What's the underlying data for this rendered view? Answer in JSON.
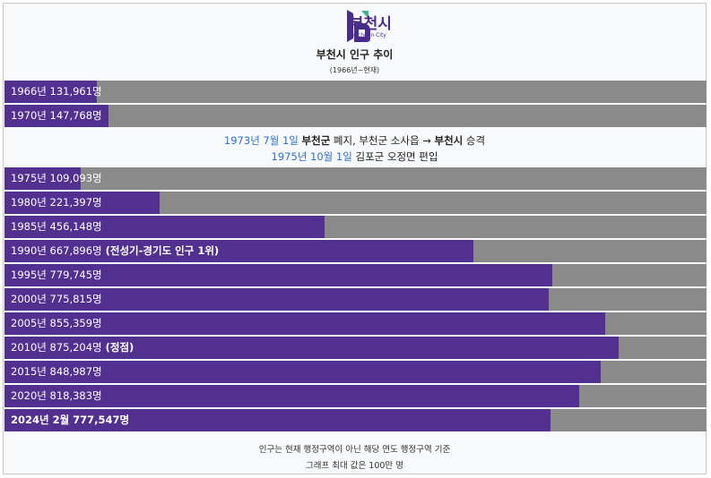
{
  "logo": {
    "name": "부천시",
    "sub": "Bucheon City"
  },
  "title": "부천시 인구 추이",
  "subtitle": "(1966년~현재)",
  "colors": {
    "bar": "#52308f",
    "track": "#8a8a8a",
    "date": "#2a73c8"
  },
  "chart_data": {
    "type": "bar",
    "orientation": "horizontal",
    "ylim": [
      0,
      1000000
    ],
    "categories": [
      "1966년",
      "1970년",
      "1975년",
      "1980년",
      "1985년",
      "1990년",
      "1995년",
      "2000년",
      "2005년",
      "2010년",
      "2015년",
      "2020년",
      "2024년 2월"
    ],
    "values": [
      131961,
      147768,
      109093,
      221397,
      456148,
      667896,
      779745,
      775815,
      855359,
      875204,
      848987,
      818383,
      777547
    ],
    "labels": [
      "1966년 131,961명",
      "1970년 147,768명",
      "1975년 109,093명",
      "1980년 221,397명",
      "1985년 456,148명",
      "1990년 667,896명",
      "1995년 779,745명",
      "2000년 775,815명",
      "2005년 855,359명",
      "2010년 875,204명",
      "2015년 848,987명",
      "2020년 818,383명",
      "2024년 2월 777,547명"
    ],
    "notes": [
      "",
      "",
      "",
      "",
      "",
      "(전성기-경기도 인구 1위)",
      "",
      "",
      "",
      "(정점)",
      "",
      "",
      ""
    ]
  },
  "events": {
    "line1": {
      "date": "1973년 7월 1일",
      "strong1": "부천군",
      "text1": " 폐지, 부천군 소사읍 → ",
      "strong2": "부천시",
      "text2": " 승격"
    },
    "line2": {
      "date": "1975년 10월 1일",
      "text": " 김포군 오정면 편입"
    }
  },
  "footer": {
    "line1": "인구는 현재 행정구역이 아닌 해당 연도 행정구역 기준",
    "line2": "그래프 최대 값은 100만 명"
  }
}
